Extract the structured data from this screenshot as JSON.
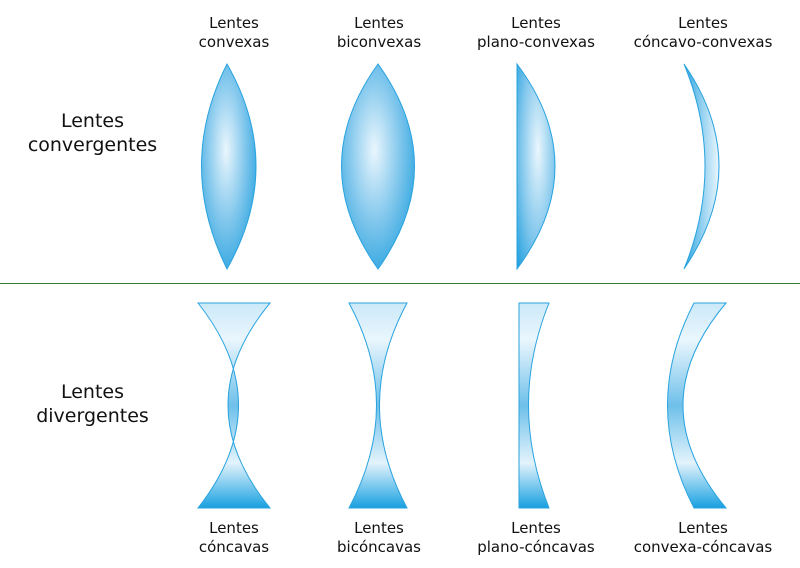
{
  "convergent": {
    "title_line1": "Lentes",
    "title_line2": "convergentes",
    "lenses": [
      {
        "line1": "Lentes",
        "line2": "convexas"
      },
      {
        "line1": "Lentes",
        "line2": "biconvexas"
      },
      {
        "line1": "Lentes",
        "line2": "plano-convexas"
      },
      {
        "line1": "Lentes",
        "line2": "cóncavo-convexas"
      }
    ]
  },
  "divergent": {
    "title_line1": "Lentes",
    "title_line2": "divergentes",
    "lenses": [
      {
        "line1": "Lentes",
        "line2": "cóncavas"
      },
      {
        "line1": "Lentes",
        "line2": "bicóncavas"
      },
      {
        "line1": "Lentes",
        "line2": "plano-cóncavas"
      },
      {
        "line1": "Lentes",
        "line2": "convexa-cóncavas"
      }
    ]
  },
  "colors": {
    "lens_dark": "#29a3df",
    "lens_light": "#eaf6fd",
    "divider": "#2e7d3c"
  }
}
